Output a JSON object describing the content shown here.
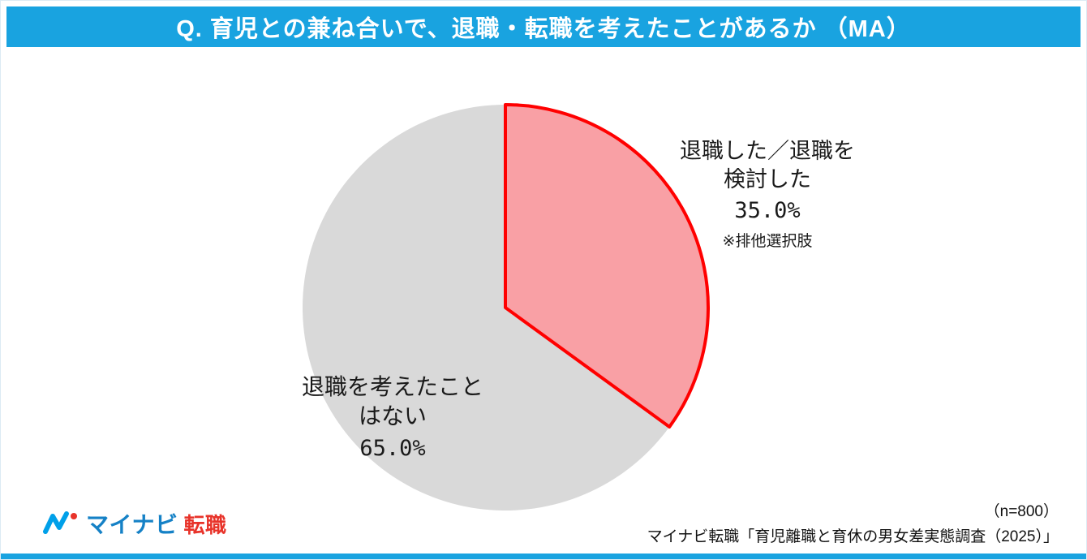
{
  "header": {
    "title": "Q. 育児との兼ね合いで、退職・転職を考えたことがあるか （MA）"
  },
  "colors": {
    "header_bg": "#19A3E0",
    "footer_bar": "#19A3E0",
    "slice_quit_fill": "#F9A0A5",
    "slice_quit_stroke": "#FF0000",
    "slice_no_fill": "#D9D9D9",
    "logo_blue": "#1581C6",
    "logo_mark_blue": "#00A0E9",
    "logo_red": "#E8332A"
  },
  "chart_data": {
    "type": "pie",
    "title": "育児との兼ね合いで、退職・転職を考えたことがあるか",
    "start_angle_deg": 0,
    "direction": "clockwise",
    "slices": [
      {
        "label": "退職した／退職を検討した",
        "value": 35.0,
        "color": "#F9A0A5",
        "stroke": "#FF0000",
        "stroke_width": 4
      },
      {
        "label": "退職を考えたことはない",
        "value": 65.0,
        "color": "#D9D9D9",
        "stroke": "none",
        "stroke_width": 0
      }
    ],
    "legend_position": "none",
    "annotations": [
      "※排他選択肢",
      "（n=800）"
    ]
  },
  "labels": {
    "slice1_line1": "退職した／退職を",
    "slice1_line2": "検討した",
    "slice1_value": "35.0%",
    "slice1_note": "※排他選択肢",
    "slice2_line1": "退職を考えたこと",
    "slice2_line2": "はない",
    "slice2_value": "65.0%"
  },
  "footer": {
    "logo_text": "マイナビ",
    "logo_badge": "転職",
    "n_label": "（n=800）",
    "source": "マイナビ転職「育児離職と育休の男女差実態調査（2025）」"
  }
}
